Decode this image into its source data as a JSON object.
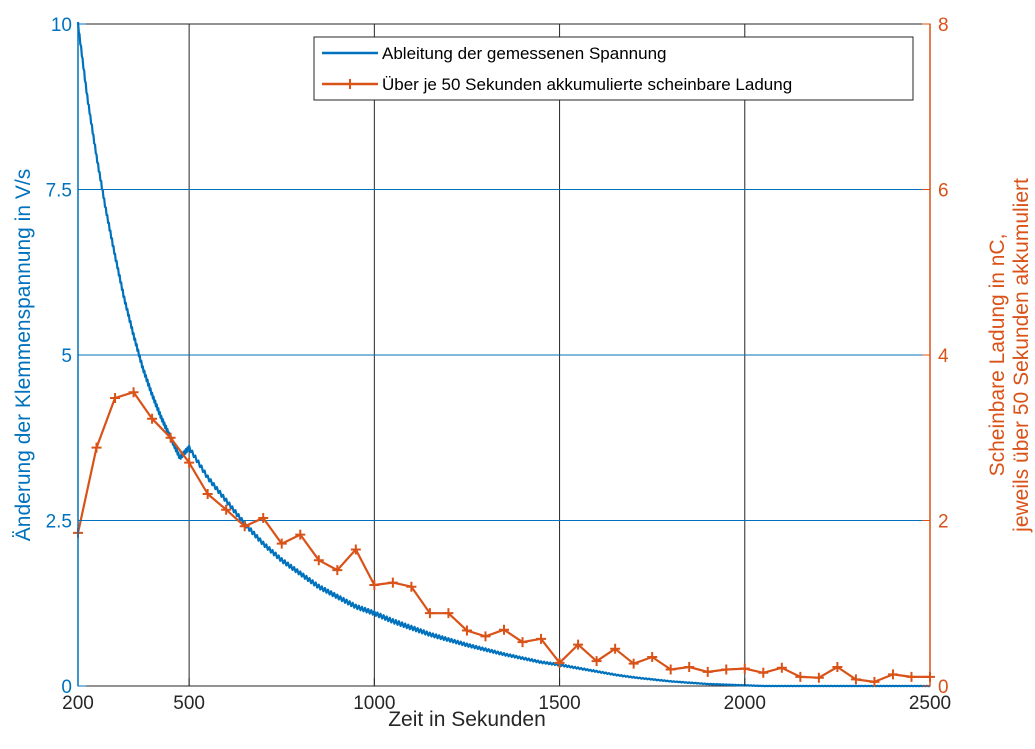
{
  "colors": {
    "left_axis": "#0072BD",
    "right_axis": "#D95319",
    "grid_vertical": "#262626",
    "grid_horizontal": "#0072BD",
    "background": "#ffffff"
  },
  "chart_data": {
    "type": "line",
    "xlabel": "Zeit in Sekunden",
    "ylabel_left": "Änderung der Klemmenspannung in V/s",
    "ylabel_right_line1": "Scheinbare Ladung in nC,",
    "ylabel_right_line2": "jeweils über 50 Sekunden akkumuliert",
    "xlim": [
      200,
      2500
    ],
    "ylim_left": [
      0,
      10
    ],
    "ylim_right": [
      0,
      8
    ],
    "x_ticks": [
      "200",
      "500",
      "1000",
      "1500",
      "2000",
      "2500"
    ],
    "x_tick_values": [
      200,
      500,
      1000,
      1500,
      2000,
      2500
    ],
    "y_left_ticks": [
      "0",
      "2.5",
      "5",
      "7.5",
      "10"
    ],
    "y_left_tick_values": [
      0,
      2.5,
      5,
      7.5,
      10
    ],
    "y_right_ticks": [
      "0",
      "2",
      "4",
      "6",
      "8"
    ],
    "y_right_tick_values": [
      0,
      2,
      4,
      6,
      8
    ],
    "grid": true,
    "legend_position": "top-right",
    "series": [
      {
        "name": "Ableitung der gemessenen Spannung",
        "axis": "left",
        "marker": "none",
        "x": [
          200,
          225,
          250,
          275,
          300,
          325,
          350,
          375,
          400,
          425,
          450,
          475,
          500,
          550,
          600,
          650,
          700,
          750,
          800,
          850,
          900,
          950,
          1000,
          1050,
          1100,
          1150,
          1200,
          1250,
          1300,
          1350,
          1400,
          1450,
          1500,
          1550,
          1600,
          1650,
          1700,
          1750,
          1800,
          1850,
          1900,
          1950,
          2000,
          2050,
          2100,
          2150,
          2200,
          2250,
          2300,
          2350,
          2400,
          2450,
          2500
        ],
        "y": [
          10,
          8.9,
          8.0,
          7.2,
          6.5,
          5.85,
          5.3,
          4.8,
          4.4,
          4.05,
          3.75,
          3.45,
          3.6,
          3.15,
          2.8,
          2.45,
          2.15,
          1.9,
          1.7,
          1.5,
          1.35,
          1.2,
          1.1,
          0.98,
          0.88,
          0.78,
          0.7,
          0.62,
          0.55,
          0.48,
          0.42,
          0.36,
          0.32,
          0.27,
          0.22,
          0.17,
          0.13,
          0.1,
          0.07,
          0.05,
          0.03,
          0.02,
          0.01,
          0.0,
          0.0,
          0.0,
          0.0,
          0.0,
          0.0,
          0.0,
          0.0,
          0.0,
          0.0
        ]
      },
      {
        "name": "Über je 50 Sekunden akkumulierte scheinbare Ladung",
        "axis": "right",
        "marker": "+",
        "x": [
          200,
          250,
          300,
          350,
          400,
          450,
          500,
          550,
          600,
          650,
          700,
          750,
          800,
          850,
          900,
          950,
          1000,
          1050,
          1100,
          1150,
          1200,
          1250,
          1300,
          1350,
          1400,
          1450,
          1500,
          1550,
          1600,
          1650,
          1700,
          1750,
          1800,
          1850,
          1900,
          1950,
          2000,
          2050,
          2100,
          2150,
          2200,
          2250,
          2300,
          2350,
          2400,
          2450,
          2500
        ],
        "y": [
          1.85,
          2.88,
          3.48,
          3.55,
          3.23,
          3.0,
          2.7,
          2.32,
          2.13,
          1.93,
          2.03,
          1.72,
          1.83,
          1.52,
          1.4,
          1.65,
          1.22,
          1.25,
          1.2,
          0.88,
          0.88,
          0.67,
          0.6,
          0.68,
          0.53,
          0.57,
          0.28,
          0.5,
          0.3,
          0.45,
          0.27,
          0.35,
          0.2,
          0.23,
          0.17,
          0.2,
          0.21,
          0.16,
          0.22,
          0.11,
          0.1,
          0.23,
          0.08,
          0.05,
          0.14,
          0.11,
          0.11
        ]
      }
    ]
  }
}
